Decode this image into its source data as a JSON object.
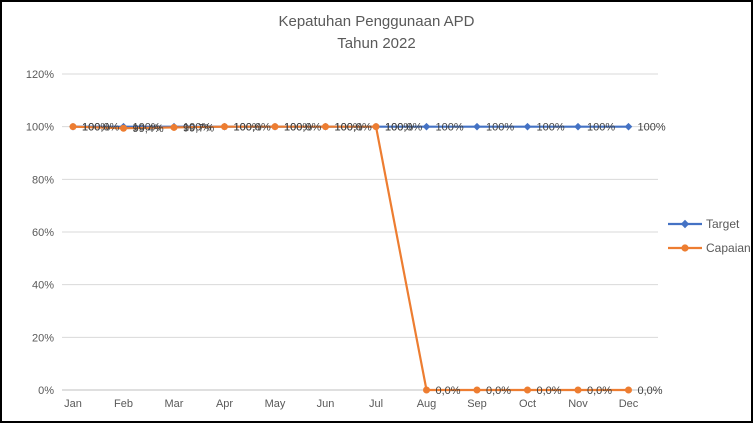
{
  "chart_data": {
    "type": "line",
    "title": "Kepatuhan Penggunaan APD",
    "subtitle": "Tahun 2022",
    "categories": [
      "Jan",
      "Feb",
      "Mar",
      "Apr",
      "May",
      "Jun",
      "Jul",
      "Aug",
      "Sep",
      "Oct",
      "Nov",
      "Dec"
    ],
    "series": [
      {
        "name": "Target",
        "color": "#4472C4",
        "marker": "diamond",
        "values": [
          100,
          100,
          100,
          100,
          100,
          100,
          100,
          100,
          100,
          100,
          100,
          100
        ],
        "labels": [
          "100%",
          "100%",
          "100%",
          "100%",
          "100%",
          "100%",
          "100%",
          "100%",
          "100%",
          "100%",
          "100%",
          "100%"
        ]
      },
      {
        "name": "Capaian",
        "color": "#ED7D31",
        "marker": "circle",
        "values": [
          100,
          99.4,
          99.7,
          100,
          100,
          100,
          100,
          0,
          0,
          0,
          0,
          0
        ],
        "labels": [
          "100,0%",
          "99,4%",
          "99,7%",
          "100,0%",
          "100,0%",
          "100,0%",
          "100,0%",
          "0,0%",
          "0,0%",
          "0,0%",
          "0,0%",
          "0,0%"
        ]
      }
    ],
    "ylim": [
      0,
      120
    ],
    "ytick_step": 20,
    "yticks": [
      "0%",
      "20%",
      "40%",
      "60%",
      "80%",
      "100%",
      "120%"
    ],
    "grid": true,
    "legend_position": "right",
    "colors": {
      "grid": "#D9D9D9",
      "axis_line": "#BFBFBF",
      "axis_text": "#595959",
      "data_label_text": "#404040",
      "title_text": "#595959"
    }
  }
}
